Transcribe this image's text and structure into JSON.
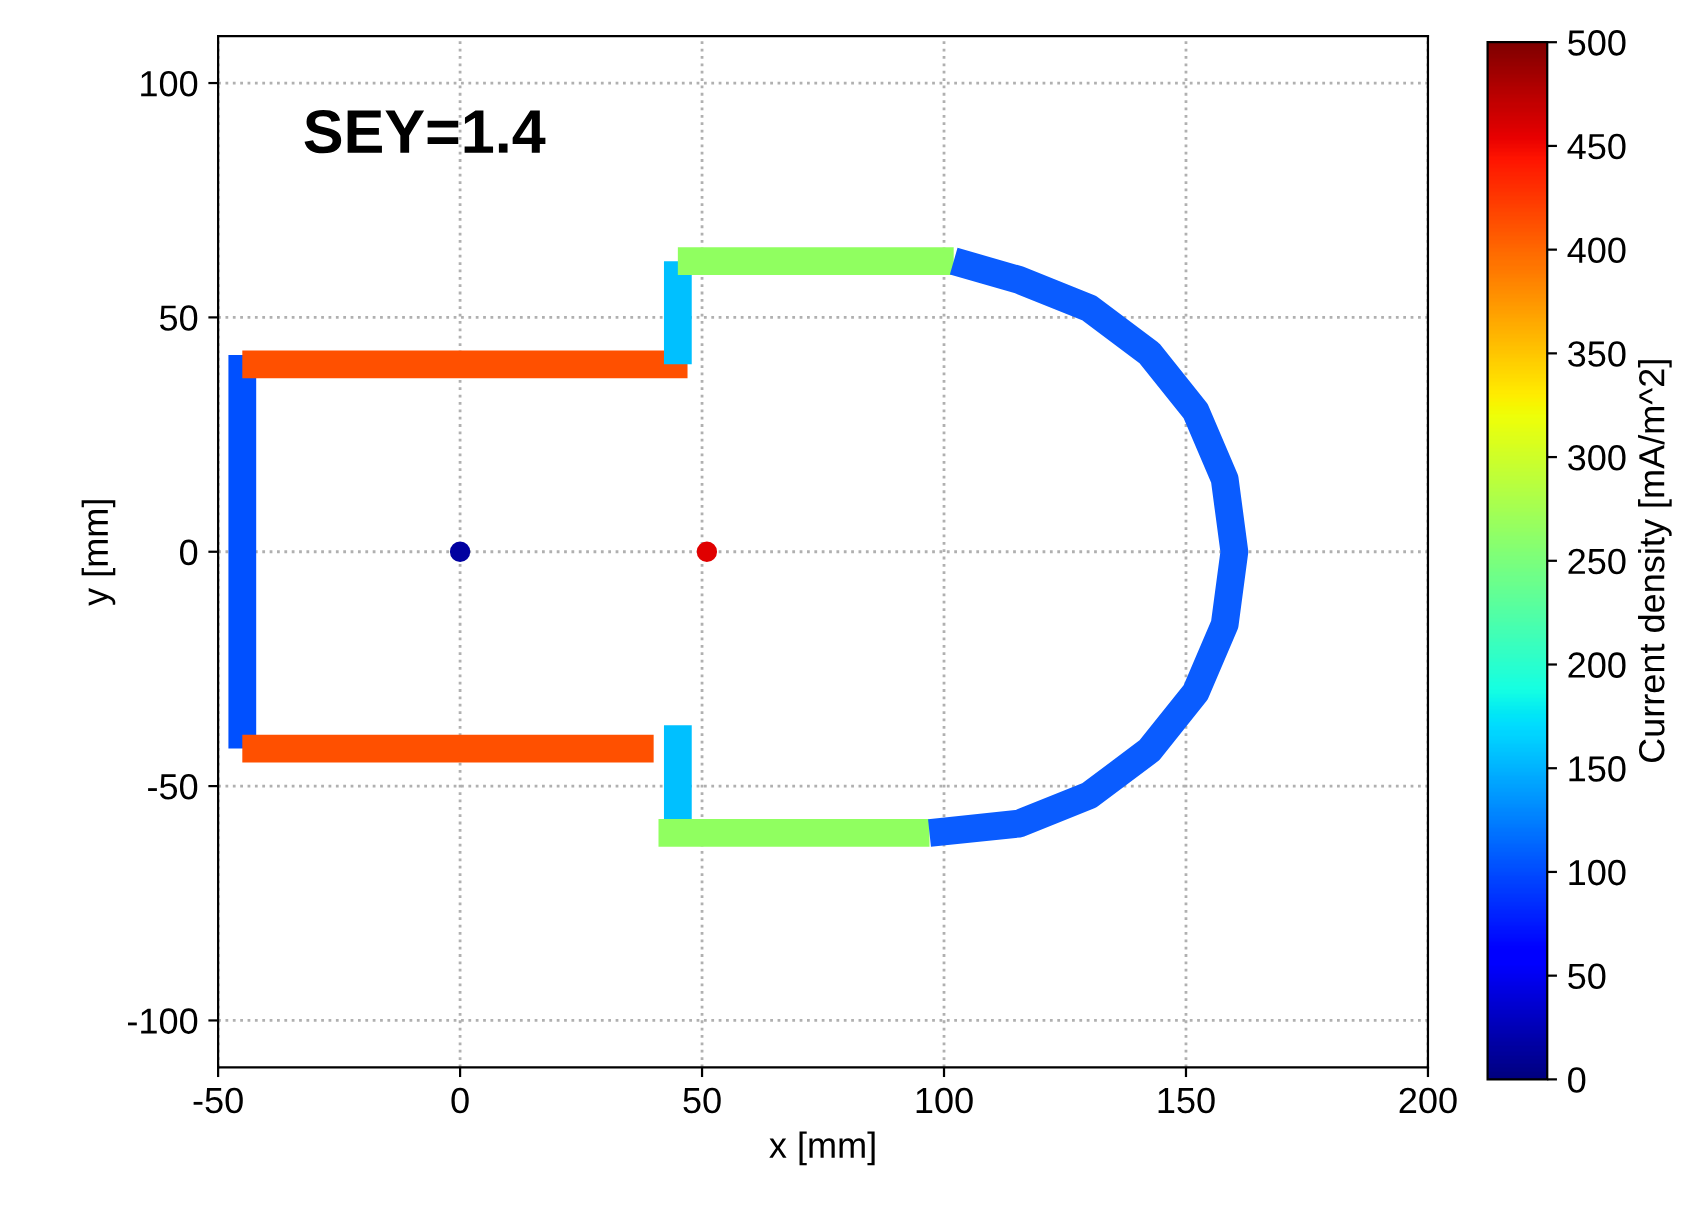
{
  "chart_data": {
    "type": "line",
    "xlabel": "x [mm]",
    "ylabel": "y [mm]",
    "clabel": "Current density [mA/m^2]",
    "annotations": [
      "SEY=1.4"
    ],
    "xlim": [
      -50,
      200
    ],
    "ylim": [
      -110,
      110
    ],
    "xticks": [
      -50,
      0,
      50,
      100,
      150,
      200
    ],
    "yticks": [
      -100,
      -50,
      0,
      50,
      100
    ],
    "clim": [
      0,
      500
    ],
    "cticks": [
      0,
      50,
      100,
      150,
      200,
      250,
      300,
      350,
      400,
      450,
      500
    ],
    "grid": true,
    "line_style": "solid",
    "series": [
      {
        "x": [
          -45,
          -45
        ],
        "values": [
          -42,
          42
        ],
        "color": "#0050ff"
      },
      {
        "x": [
          -45,
          47
        ],
        "values": [
          40,
          40
        ],
        "color": "#ff5000"
      },
      {
        "x": [
          -45,
          40
        ],
        "values": [
          -42,
          -42
        ],
        "color": "#ff5000"
      },
      {
        "x": [
          45,
          45
        ],
        "values": [
          40,
          62
        ],
        "color": "#00c0ff"
      },
      {
        "x": [
          45,
          45
        ],
        "values": [
          -37,
          -60
        ],
        "color": "#00c0ff"
      },
      {
        "x": [
          45,
          102
        ],
        "values": [
          62,
          62
        ],
        "color": "#90ff60"
      },
      {
        "x": [
          41,
          97
        ],
        "values": [
          -60,
          -60
        ],
        "color": "#90ff60"
      },
      {
        "x": [
          102,
          115.5,
          130,
          142.4,
          152,
          158,
          160,
          158,
          152,
          142.4,
          130,
          115.5,
          97
        ],
        "values": [
          62,
          58,
          52,
          42.4,
          30,
          15.5,
          0,
          -15.5,
          -30,
          -42.4,
          -52,
          -58,
          -60
        ],
        "color": "#0a5cff"
      },
      {
        "type": "scatter",
        "x": [
          0,
          51
        ],
        "values": [
          0,
          0
        ],
        "colors": [
          "#0000a0",
          "#e00000"
        ]
      }
    ]
  }
}
